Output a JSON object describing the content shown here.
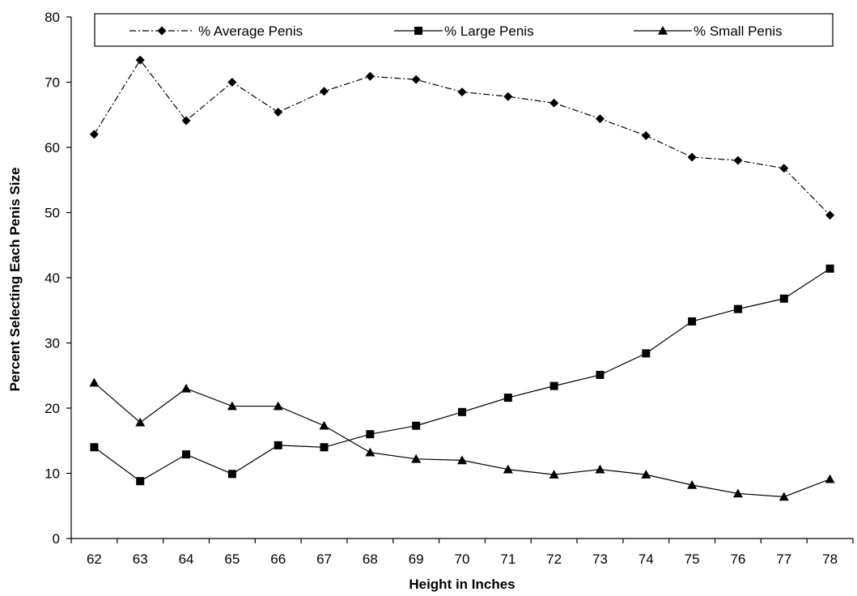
{
  "chart_data": {
    "type": "line",
    "title": "",
    "xlabel": "Height in Inches",
    "ylabel": "Percent Selecting Each Penis Size",
    "x": [
      62,
      63,
      64,
      65,
      66,
      67,
      68,
      69,
      70,
      71,
      72,
      73,
      74,
      75,
      76,
      77,
      78
    ],
    "ylim": [
      0,
      80
    ],
    "yticks": [
      0,
      10,
      20,
      30,
      40,
      50,
      60,
      70,
      80
    ],
    "grid": false,
    "legend": "top",
    "series": [
      {
        "name": "% Average Penis",
        "marker": "diamond",
        "line": "dash-dot",
        "values": [
          62.0,
          73.4,
          64.1,
          70.0,
          65.4,
          68.6,
          70.9,
          70.4,
          68.5,
          67.8,
          66.8,
          64.4,
          61.8,
          58.5,
          58.0,
          56.8,
          49.6
        ]
      },
      {
        "name": "% Large Penis",
        "marker": "square",
        "line": "solid",
        "values": [
          14.0,
          8.8,
          12.9,
          9.9,
          14.3,
          14.0,
          16.0,
          17.3,
          19.4,
          21.6,
          23.4,
          25.1,
          28.4,
          33.3,
          35.2,
          36.8,
          41.4
        ]
      },
      {
        "name": "% Small Penis",
        "marker": "triangle",
        "line": "solid",
        "values": [
          23.9,
          17.8,
          23.0,
          20.3,
          20.3,
          17.3,
          13.2,
          12.2,
          12.0,
          10.6,
          9.8,
          10.6,
          9.8,
          8.2,
          6.9,
          6.4,
          9.1
        ]
      }
    ]
  }
}
